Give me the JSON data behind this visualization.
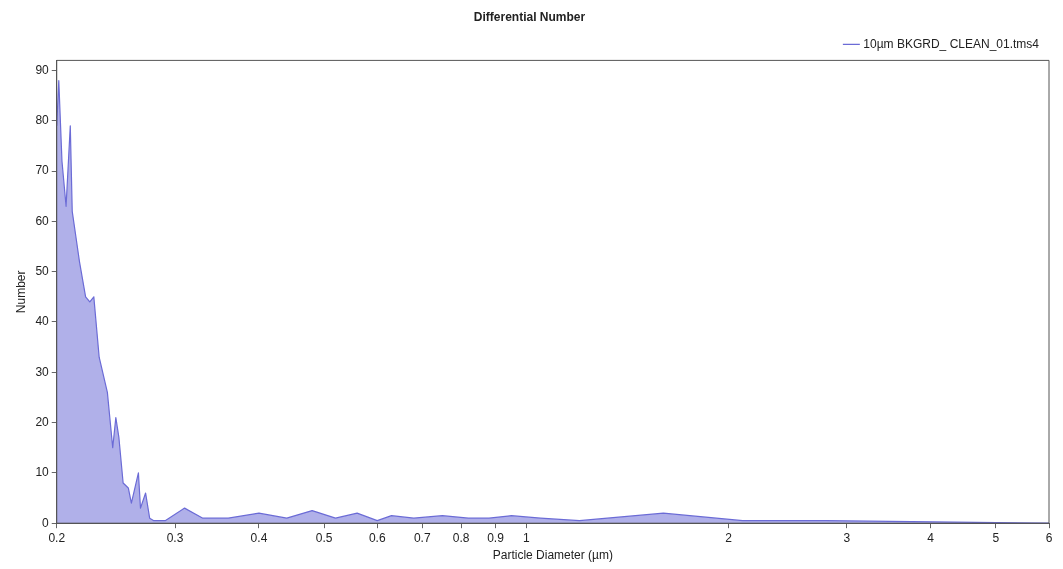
{
  "chart_data": {
    "type": "area",
    "title": "Differential Number",
    "xlabel": "Particle Diameter (µm)",
    "ylabel": "Number",
    "log": "x",
    "xlim": [
      0.2,
      6
    ],
    "xticks": [
      0.2,
      0.3,
      0.4,
      0.5,
      0.6,
      0.7,
      0.8,
      0.9,
      1,
      2,
      3,
      4,
      5,
      6
    ],
    "ylim": [
      0,
      92
    ],
    "yticks": [
      0,
      10,
      20,
      30,
      40,
      50,
      60,
      70,
      80,
      90
    ],
    "grid": false,
    "legend": "top right",
    "marker": "none",
    "series": [
      {
        "name": "10µm BKGRD_ CLEAN_01.tms4",
        "color": "#6b6bd6",
        "x": [
          0.2,
          0.2014,
          0.2036,
          0.2065,
          0.2095,
          0.2109,
          0.2162,
          0.2208,
          0.224,
          0.2271,
          0.2313,
          0.2379,
          0.2423,
          0.2449,
          0.2475,
          0.2511,
          0.2556,
          0.2583,
          0.2646,
          0.2665,
          0.2712,
          0.275,
          0.279,
          0.29,
          0.31,
          0.33,
          0.36,
          0.4,
          0.44,
          0.48,
          0.52,
          0.56,
          0.6,
          0.63,
          0.68,
          0.75,
          0.82,
          0.88,
          0.95,
          1.05,
          1.2,
          1.6,
          2.1,
          2.8,
          6
        ],
        "values": [
          79,
          88,
          72,
          63,
          79,
          62,
          52,
          45,
          44,
          45,
          33,
          26,
          15,
          21,
          17,
          8,
          7,
          4,
          10,
          3,
          6,
          1,
          0.5,
          0.5,
          3,
          1,
          1,
          2,
          1,
          2.5,
          1,
          2,
          0.5,
          1.5,
          1,
          1.5,
          1,
          1,
          1.5,
          1,
          0.5,
          2,
          0.5,
          0.5,
          0
        ]
      }
    ]
  }
}
